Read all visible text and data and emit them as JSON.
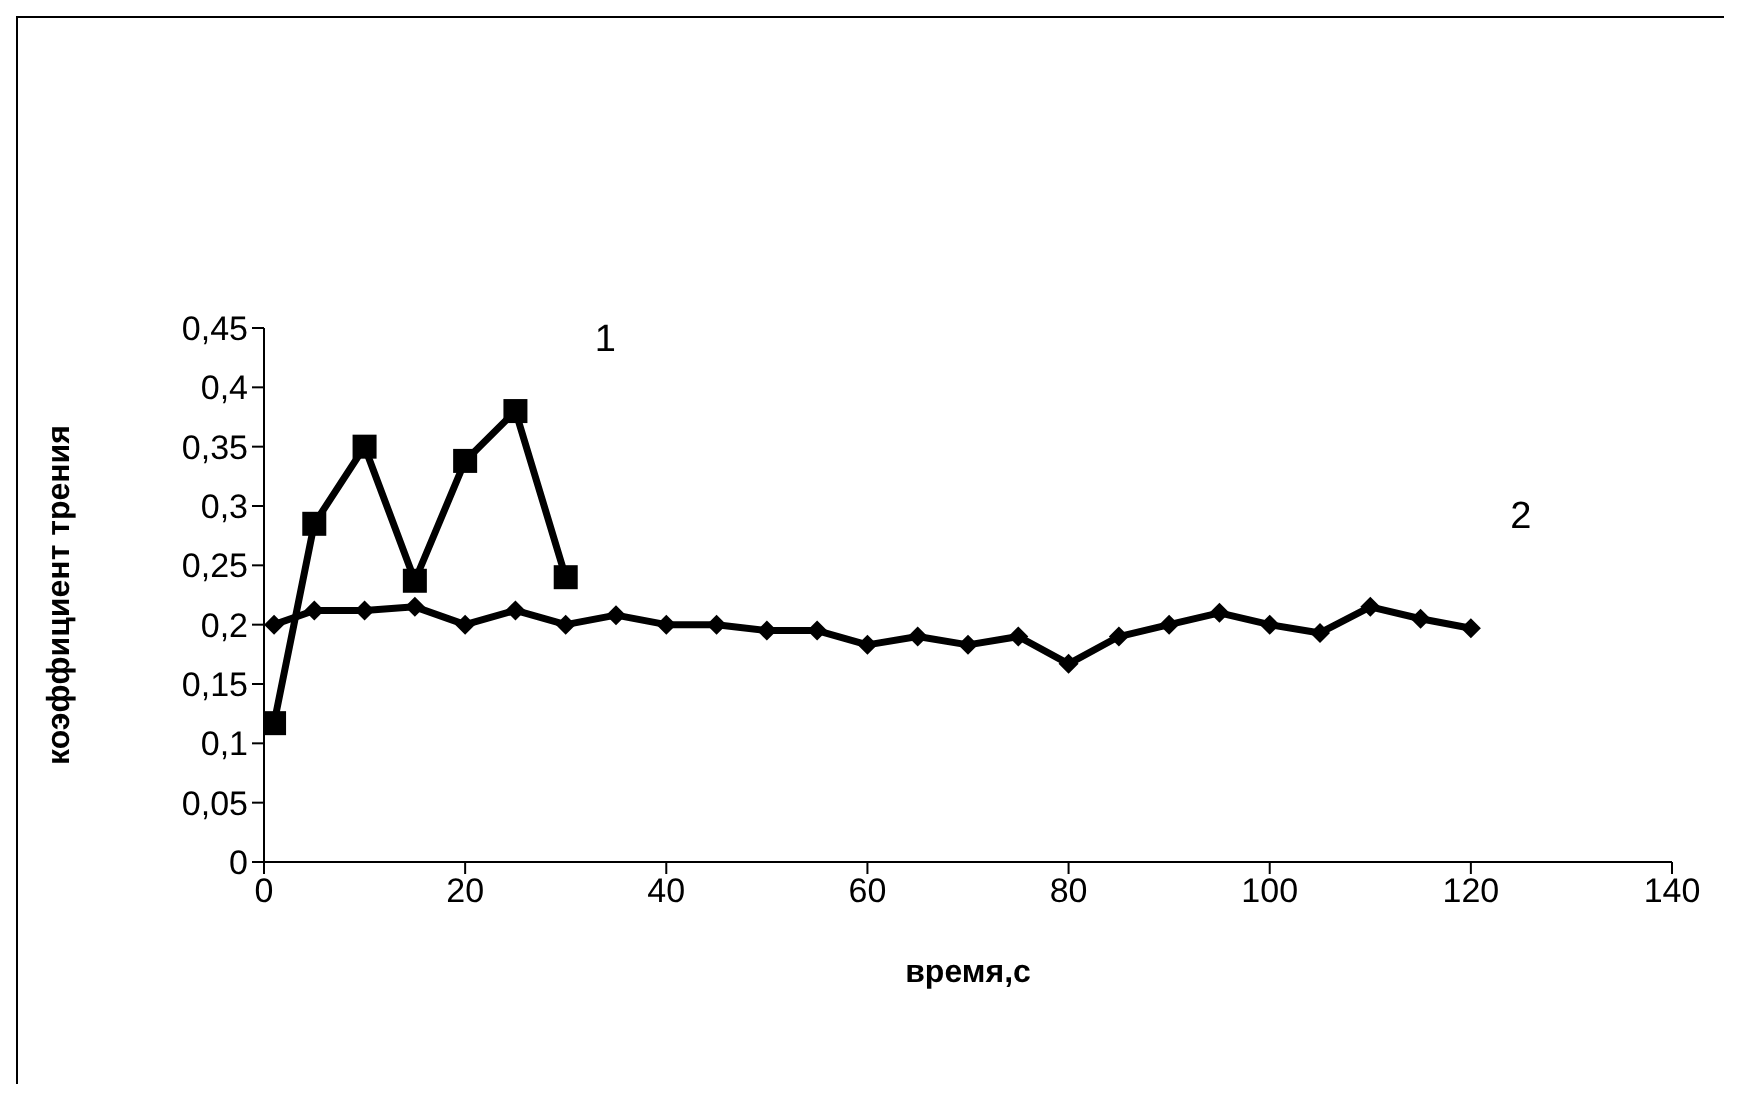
{
  "chart_data": {
    "type": "line",
    "xlabel": "время,с",
    "ylabel": "коэффициент трения",
    "xlim": [
      0,
      140
    ],
    "xticks": [
      0,
      20,
      40,
      60,
      80,
      100,
      120,
      140
    ],
    "ylim": [
      0,
      0.45
    ],
    "yticks": [
      {
        "value": 0,
        "label": "0"
      },
      {
        "value": 0.05,
        "label": "0,05"
      },
      {
        "value": 0.1,
        "label": "0,1"
      },
      {
        "value": 0.15,
        "label": "0,15"
      },
      {
        "value": 0.2,
        "label": "0,2"
      },
      {
        "value": 0.25,
        "label": "0,25"
      },
      {
        "value": 0.3,
        "label": "0,3"
      },
      {
        "value": 0.35,
        "label": "0,35"
      },
      {
        "value": 0.4,
        "label": "0,4"
      },
      {
        "value": 0.45,
        "label": "0,45"
      }
    ],
    "line_style": "solid",
    "series": [
      {
        "name": "1",
        "color": "#000000",
        "marker": "square",
        "x": [
          1,
          5,
          10,
          15,
          20,
          25,
          30
        ],
        "values": [
          0.117,
          0.285,
          0.35,
          0.237,
          0.338,
          0.38,
          0.24
        ]
      },
      {
        "name": "2",
        "color": "#000000",
        "marker": "diamond",
        "x": [
          1,
          5,
          10,
          15,
          20,
          25,
          30,
          35,
          40,
          45,
          50,
          55,
          60,
          65,
          70,
          75,
          80,
          85,
          90,
          95,
          100,
          105,
          110,
          115,
          120
        ],
        "values": [
          0.2,
          0.212,
          0.212,
          0.215,
          0.2,
          0.212,
          0.2,
          0.208,
          0.2,
          0.2,
          0.195,
          0.195,
          0.183,
          0.19,
          0.183,
          0.19,
          0.167,
          0.19,
          0.2,
          0.21,
          0.2,
          0.193,
          0.215,
          0.205,
          0.197
        ]
      }
    ]
  }
}
